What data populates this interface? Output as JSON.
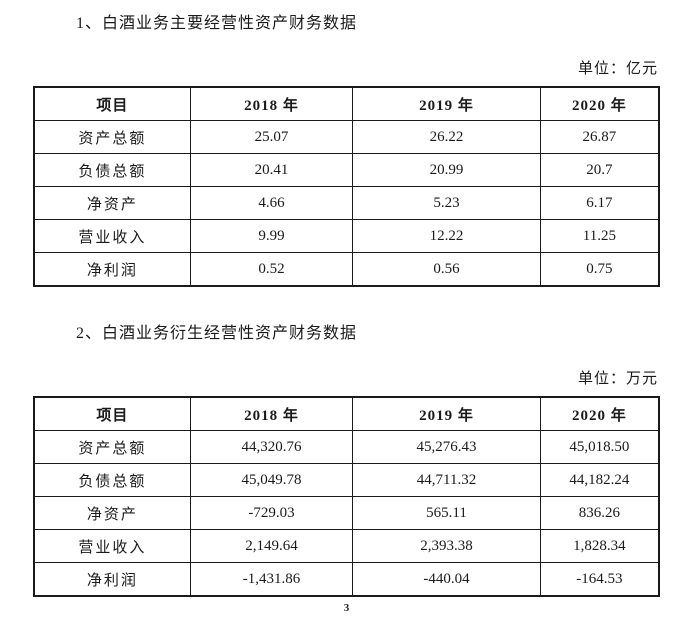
{
  "page": {
    "page_number": "3"
  },
  "sections": [
    {
      "heading": "1、白酒业务主要经营性资产财务数据",
      "unit_label": "单位：亿元",
      "table": {
        "headers": [
          "项目",
          "2018 年",
          "2019 年",
          "2020 年"
        ],
        "rows": [
          [
            "资产总额",
            "25.07",
            "26.22",
            "26.87"
          ],
          [
            "负债总额",
            "20.41",
            "20.99",
            "20.7"
          ],
          [
            "净资产",
            "4.66",
            "5.23",
            "6.17"
          ],
          [
            "营业收入",
            "9.99",
            "12.22",
            "11.25"
          ],
          [
            "净利润",
            "0.52",
            "0.56",
            "0.75"
          ]
        ]
      }
    },
    {
      "heading": "2、白酒业务衍生经营性资产财务数据",
      "unit_label": "单位：万元",
      "table": {
        "headers": [
          "项目",
          "2018 年",
          "2019 年",
          "2020 年"
        ],
        "rows": [
          [
            "资产总额",
            "44,320.76",
            "45,276.43",
            "45,018.50"
          ],
          [
            "负债总额",
            "45,049.78",
            "44,711.32",
            "44,182.24"
          ],
          [
            "净资产",
            "-729.03",
            "565.11",
            "836.26"
          ],
          [
            "营业收入",
            "2,149.64",
            "2,393.38",
            "1,828.34"
          ],
          [
            "净利润",
            "-1,431.86",
            "-440.04",
            "-164.53"
          ]
        ]
      }
    }
  ]
}
